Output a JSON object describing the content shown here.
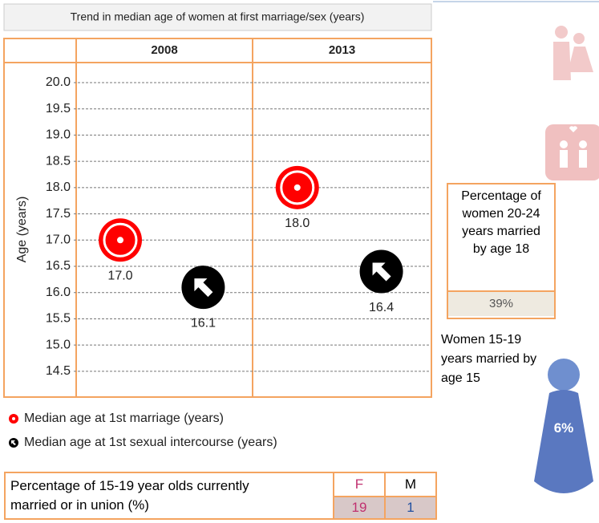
{
  "chart_data": {
    "type": "dot",
    "title": "Trend in median age of women at first marriage/sex (years)",
    "ylabel": "Age (years)",
    "categories": [
      "2008",
      "2013"
    ],
    "series": [
      {
        "name": "Median age at 1st marriage (years)",
        "color": "#ff0000",
        "values": [
          17.0,
          18.0
        ],
        "value_labels": [
          "17.0",
          "18.0"
        ]
      },
      {
        "name": "Median age at 1st sexual intercourse (years)",
        "color": "#000000",
        "values": [
          16.1,
          16.4
        ],
        "value_labels": [
          "16.1",
          "16.4"
        ]
      }
    ],
    "ylim": [
      14,
      20.4
    ],
    "yticks": [
      {
        "value": 14.5,
        "label": "14.5"
      },
      {
        "value": 15,
        "label": "15.0"
      },
      15.5,
      {
        "value": 16,
        "label": "16.0"
      },
      16.5,
      {
        "value": 17,
        "label": "17.0"
      },
      17.5,
      {
        "value": 18,
        "label": "18.0"
      },
      18.5,
      {
        "value": 19,
        "label": "19.0"
      },
      19.5,
      {
        "value": 20,
        "label": "20.0"
      }
    ],
    "grid": true
  },
  "side_box": {
    "text": "Percentage of women 20-24 years married by age 18",
    "value": "39%"
  },
  "side_note": {
    "text": "Women 15-19 years married by age 15",
    "value": "6%"
  },
  "bottom_table": {
    "label": "Percentage of 15-19 year olds currently married or in union (%)",
    "headers": [
      "F",
      "M"
    ],
    "values": [
      "19",
      "1"
    ]
  }
}
